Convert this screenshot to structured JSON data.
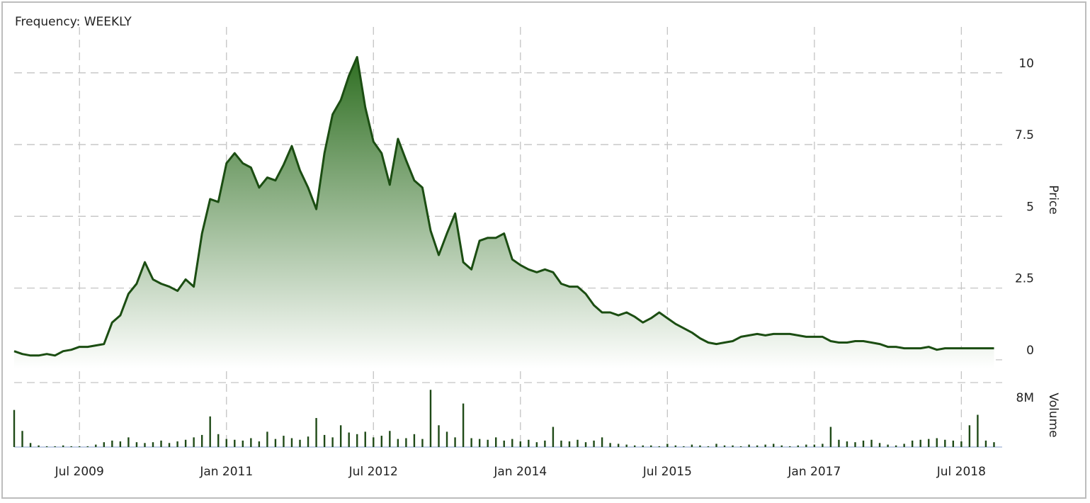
{
  "chart_data": {
    "type": "area",
    "title": "Frequency: WEEKLY",
    "ylabel": "Price",
    "y2label": "Volume",
    "x": [
      "2008-11",
      "2008-12",
      "2009-01",
      "2009-02",
      "2009-03",
      "2009-04",
      "2009-05",
      "2009-06",
      "2009-07",
      "2009-08",
      "2009-09",
      "2009-10",
      "2009-11",
      "2009-12",
      "2010-01",
      "2010-02",
      "2010-03",
      "2010-04",
      "2010-05",
      "2010-06",
      "2010-07",
      "2010-08",
      "2010-09",
      "2010-10",
      "2010-11",
      "2010-12",
      "2011-01",
      "2011-02",
      "2011-03",
      "2011-04",
      "2011-05",
      "2011-06",
      "2011-07",
      "2011-08",
      "2011-09",
      "2011-10",
      "2011-11",
      "2011-12",
      "2012-01",
      "2012-02",
      "2012-03",
      "2012-04",
      "2012-05",
      "2012-06",
      "2012-07",
      "2012-08",
      "2012-09",
      "2012-10",
      "2012-11",
      "2012-12",
      "2013-01",
      "2013-02",
      "2013-03",
      "2013-04",
      "2013-05",
      "2013-06",
      "2013-07",
      "2013-08",
      "2013-09",
      "2013-10",
      "2013-11",
      "2013-12",
      "2014-01",
      "2014-02",
      "2014-03",
      "2014-04",
      "2014-05",
      "2014-06",
      "2014-07",
      "2014-08",
      "2014-09",
      "2014-10",
      "2014-11",
      "2014-12",
      "2015-01",
      "2015-02",
      "2015-03",
      "2015-04",
      "2015-05",
      "2015-06",
      "2015-07",
      "2015-08",
      "2015-09",
      "2015-10",
      "2015-11",
      "2015-12",
      "2016-01",
      "2016-02",
      "2016-03",
      "2016-04",
      "2016-05",
      "2016-06",
      "2016-07",
      "2016-08",
      "2016-09",
      "2016-10",
      "2016-11",
      "2016-12",
      "2017-01",
      "2017-02",
      "2017-03",
      "2017-04",
      "2017-05",
      "2017-06",
      "2017-07",
      "2017-08",
      "2017-09",
      "2017-10",
      "2017-11",
      "2017-12",
      "2018-01",
      "2018-02",
      "2018-03",
      "2018-04",
      "2018-05",
      "2018-06",
      "2018-07",
      "2018-08",
      "2018-09",
      "2018-10",
      "2018-11"
    ],
    "series": [
      {
        "name": "Price",
        "color": "#1b4d12",
        "fill_top": "#2f6f22",
        "fill_bottom": "#ffffff",
        "values": [
          0.3,
          0.2,
          0.15,
          0.15,
          0.2,
          0.15,
          0.3,
          0.35,
          0.45,
          0.45,
          0.5,
          0.55,
          1.3,
          1.55,
          2.3,
          2.65,
          3.4,
          2.8,
          2.65,
          2.55,
          2.4,
          2.8,
          2.55,
          4.4,
          5.6,
          5.5,
          6.85,
          7.2,
          6.85,
          6.7,
          6.0,
          6.35,
          6.25,
          6.8,
          7.45,
          6.6,
          6.0,
          5.25,
          7.2,
          8.55,
          9.05,
          9.9,
          10.55,
          8.8,
          7.6,
          7.2,
          6.1,
          7.7,
          6.95,
          6.25,
          6.0,
          4.5,
          3.65,
          4.4,
          5.1,
          3.4,
          3.15,
          4.15,
          4.25,
          4.25,
          4.4,
          3.5,
          3.3,
          3.15,
          3.05,
          3.15,
          3.05,
          2.65,
          2.55,
          2.55,
          2.3,
          1.9,
          1.65,
          1.65,
          1.55,
          1.65,
          1.5,
          1.3,
          1.45,
          1.65,
          1.45,
          1.25,
          1.1,
          0.95,
          0.75,
          0.6,
          0.55,
          0.6,
          0.65,
          0.8,
          0.85,
          0.9,
          0.85,
          0.9,
          0.9,
          0.9,
          0.85,
          0.8,
          0.8,
          0.8,
          0.65,
          0.6,
          0.6,
          0.65,
          0.65,
          0.6,
          0.55,
          0.45,
          0.45,
          0.4,
          0.4,
          0.4,
          0.45,
          0.35,
          0.4,
          0.4,
          0.4,
          0.4,
          0.4,
          0.4,
          0.4
        ]
      },
      {
        "name": "Volume",
        "axis": "y2",
        "type": "bar",
        "color": "#1f4a17",
        "values": [
          4600000,
          2000000,
          500000,
          200000,
          100000,
          100000,
          200000,
          100000,
          100000,
          100000,
          300000,
          600000,
          800000,
          700000,
          1200000,
          600000,
          500000,
          600000,
          800000,
          500000,
          700000,
          900000,
          1200000,
          1500000,
          3800000,
          1600000,
          1000000,
          900000,
          800000,
          1100000,
          700000,
          1900000,
          1000000,
          1400000,
          1100000,
          900000,
          1300000,
          3600000,
          1500000,
          1200000,
          2700000,
          1800000,
          1600000,
          1900000,
          1200000,
          1400000,
          2000000,
          1000000,
          1100000,
          1600000,
          1000000,
          7100000,
          2700000,
          1900000,
          1200000,
          5400000,
          1100000,
          1000000,
          900000,
          1200000,
          800000,
          1000000,
          700000,
          900000,
          600000,
          800000,
          2500000,
          800000,
          700000,
          900000,
          600000,
          800000,
          1200000,
          500000,
          400000,
          300000,
          200000,
          200000,
          200000,
          100000,
          400000,
          200000,
          100000,
          300000,
          200000,
          100000,
          400000,
          200000,
          200000,
          100000,
          300000,
          200000,
          300000,
          400000,
          200000,
          100000,
          200000,
          300000,
          300000,
          400000,
          2500000,
          900000,
          700000,
          600000,
          800000,
          900000,
          500000,
          300000,
          200000,
          400000,
          800000,
          900000,
          1000000,
          1100000,
          900000,
          800000,
          700000,
          2700000,
          4000000,
          800000,
          600000
        ]
      }
    ],
    "xlim": [
      "2008-11",
      "2018-12"
    ],
    "xticks": [
      {
        "value": "2009-07",
        "label": "Jul 2009"
      },
      {
        "value": "2011-01",
        "label": "Jan 2011"
      },
      {
        "value": "2012-07",
        "label": "Jul 2012"
      },
      {
        "value": "2014-01",
        "label": "Jan 2014"
      },
      {
        "value": "2015-07",
        "label": "Jul 2015"
      },
      {
        "value": "2017-01",
        "label": "Jan 2017"
      },
      {
        "value": "2018-07",
        "label": "Jul 2018"
      }
    ],
    "ylim": [
      -0.3,
      11.6
    ],
    "yticks": [
      0,
      2.5,
      5,
      7.5,
      10
    ],
    "y2lim": [
      0,
      8000000
    ],
    "y2ticks": [
      {
        "value": 8000000,
        "label": "8M"
      }
    ],
    "grid": true
  }
}
